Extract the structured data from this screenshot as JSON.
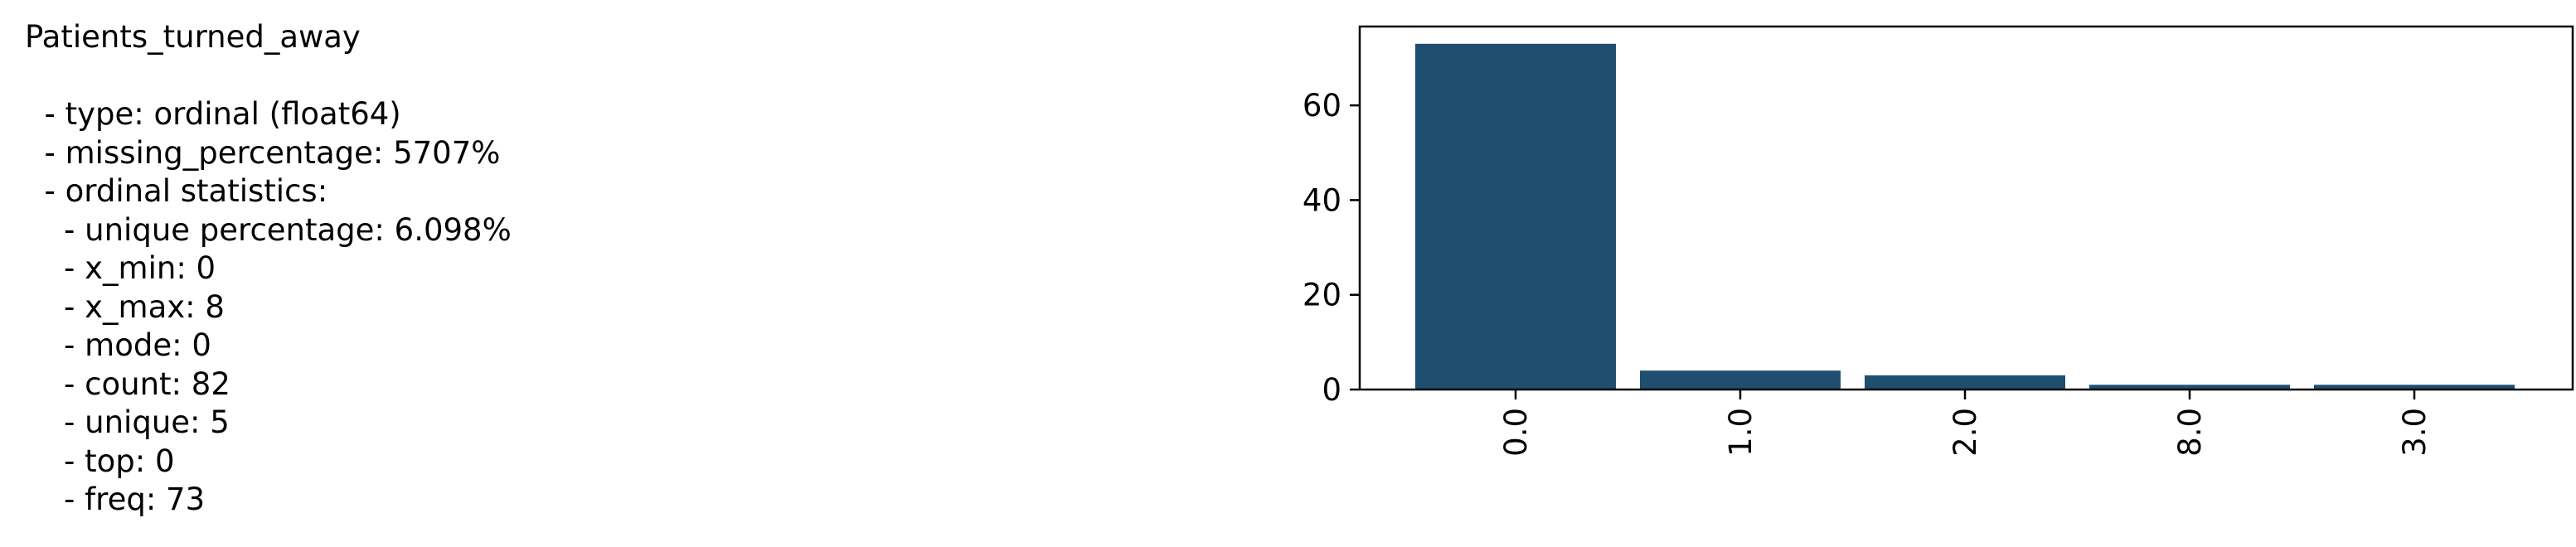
{
  "stats": {
    "title": "Patients_turned_away",
    "lines": [
      "  - type: ordinal (float64)",
      "  - missing_percentage: 5707%",
      "  - ordinal statistics:",
      "    - unique percentage: 6.098%",
      "    - x_min: 0",
      "    - x_max: 8",
      "    - mode: 0",
      "    - count: 82",
      "    - unique: 5",
      "    - top: 0",
      "    - freq: 73"
    ]
  },
  "chart_data": {
    "type": "bar",
    "categories": [
      "0.0",
      "1.0",
      "2.0",
      "8.0",
      "3.0"
    ],
    "values": [
      73,
      4,
      3,
      1,
      1
    ],
    "ylim": [
      0,
      76.65
    ],
    "yticks": [
      0,
      20,
      40,
      60
    ],
    "ytick_labels": [
      "0",
      "20",
      "40",
      "60"
    ],
    "bar_color": "#1f4e70",
    "xtick_rotation": "vertical",
    "grid": false,
    "title": "",
    "xlabel": "",
    "ylabel": ""
  }
}
